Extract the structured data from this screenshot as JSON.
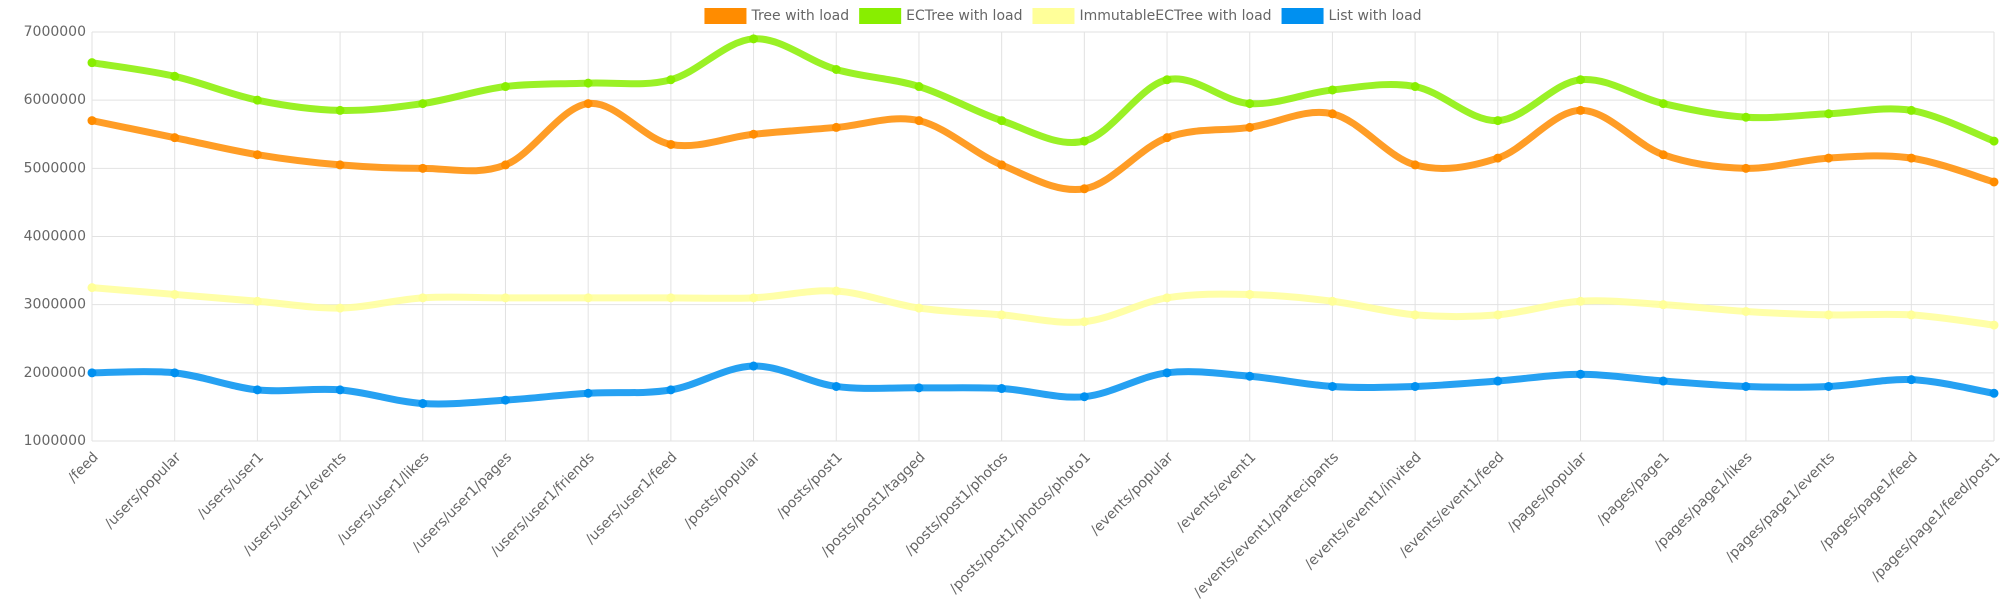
{
  "chart_data": {
    "type": "line",
    "categories": [
      "/feed",
      "/users/popular",
      "/users/user1",
      "/users/user1/events",
      "/users/user1/likes",
      "/users/user1/pages",
      "/users/user1/friends",
      "/users/user1/feed",
      "/posts/popular",
      "/posts/post1",
      "/posts/post1/tagged",
      "/posts/post1/photos",
      "/posts/post1/photos/photo1",
      "/events/popular",
      "/events/event1",
      "/events/event1/partecipants",
      "/events/event1/invited",
      "/events/event1/feed",
      "/pages/popular",
      "/pages/page1",
      "/pages/page1/likes",
      "/pages/page1/events",
      "/pages/page1/feed",
      "/pages/page1/feed/post1"
    ],
    "series": [
      {
        "name": "Tree with load",
        "color": "#ff8c00",
        "values": [
          5700000,
          5450000,
          5200000,
          5050000,
          5000000,
          5050000,
          5950000,
          5350000,
          5500000,
          5600000,
          5700000,
          5050000,
          4700000,
          5450000,
          5600000,
          5800000,
          5050000,
          5150000,
          5850000,
          5200000,
          5000000,
          5150000,
          5150000,
          4800000
        ]
      },
      {
        "name": "ECTree with load",
        "color": "#88ee00",
        "values": [
          6550000,
          6350000,
          6000000,
          5850000,
          5950000,
          6200000,
          6250000,
          6300000,
          6900000,
          6450000,
          6200000,
          5700000,
          5400000,
          6300000,
          5950000,
          6150000,
          6200000,
          5700000,
          6300000,
          5950000,
          5750000,
          5800000,
          5850000,
          5400000
        ]
      },
      {
        "name": "ImmutableECTree with load",
        "color": "#ffff99",
        "values": [
          3250000,
          3150000,
          3050000,
          2950000,
          3100000,
          3100000,
          3100000,
          3100000,
          3100000,
          3200000,
          2950000,
          2850000,
          2750000,
          3100000,
          3150000,
          3050000,
          2850000,
          2850000,
          3050000,
          3000000,
          2900000,
          2850000,
          2850000,
          2700000
        ]
      },
      {
        "name": "List with load",
        "color": "#0090f0",
        "values": [
          2000000,
          2000000,
          1750000,
          1750000,
          1550000,
          1600000,
          1700000,
          1750000,
          2100000,
          1800000,
          1780000,
          1770000,
          1650000,
          2000000,
          1950000,
          1800000,
          1800000,
          1880000,
          1980000,
          1880000,
          1800000,
          1800000,
          1900000,
          1700000
        ]
      }
    ],
    "ylim": [
      1000000,
      7000000
    ],
    "yticks": [
      1000000,
      2000000,
      3000000,
      4000000,
      5000000,
      6000000,
      7000000
    ],
    "grid": true,
    "legend": "top"
  }
}
